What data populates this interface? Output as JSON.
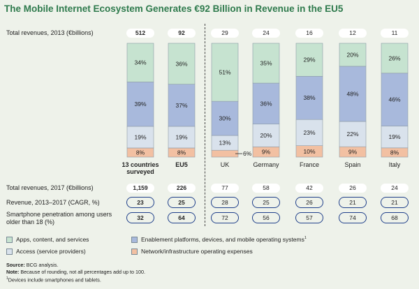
{
  "title": "The Mobile Internet Ecosystem Generates €92 Billion in Revenue in the EU5",
  "row_labels": {
    "revenue_2013": "Total revenues, 2013 (€billions)",
    "revenue_2017": "Total revenues, 2017 (€billions)",
    "cagr": "Revenue, 2013–2017 (CAGR, %)",
    "smartphone": "Smartphone penetration among users older than 18 (%)"
  },
  "colors": {
    "apps": "#c6e3d0",
    "platforms": "#a8b9dc",
    "access": "#d9e2ec",
    "network": "#f2c0a2",
    "accent": "#2e7a4c",
    "oval": "#1f3f8a"
  },
  "chart_data": {
    "type": "bar",
    "stacked": true,
    "percent_scale": true,
    "title": "The Mobile Internet Ecosystem Generates €92 Billion in Revenue in the EU5",
    "categories": [
      "13 countries surveyed",
      "EU5",
      "UK",
      "Germany",
      "France",
      "Spain",
      "Italy"
    ],
    "series": [
      {
        "name": "Network/infrastructure operating expenses",
        "key": "network",
        "values": [
          8,
          8,
          6,
          9,
          10,
          9,
          8
        ],
        "labels": [
          "8%",
          "8%",
          "6%",
          "9%",
          "10%",
          "9%",
          "8%"
        ]
      },
      {
        "name": "Access (service providers)",
        "key": "access",
        "values": [
          19,
          19,
          13,
          20,
          23,
          22,
          19
        ],
        "labels": [
          "19%",
          "19%",
          "13%",
          "20%",
          "23%",
          "22%",
          "19%"
        ]
      },
      {
        "name": "Enablement platforms, devices, and mobile operating systems",
        "key": "platforms",
        "values": [
          39,
          37,
          30,
          36,
          38,
          48,
          46
        ],
        "labels": [
          "39%",
          "37%",
          "30%",
          "36%",
          "38%",
          "48%",
          "46%"
        ]
      },
      {
        "name": "Apps, content, and services",
        "key": "apps",
        "values": [
          34,
          36,
          51,
          35,
          29,
          20,
          26
        ],
        "labels": [
          "34%",
          "36%",
          "51%",
          "35%",
          "29%",
          "20%",
          "26%"
        ]
      }
    ],
    "bold_categories": [
      "13 countries surveyed",
      "EU5"
    ],
    "revenue_2013": [
      "512",
      "92",
      "29",
      "24",
      "16",
      "12",
      "11"
    ],
    "revenue_2017": [
      "1,159",
      "226",
      "77",
      "58",
      "42",
      "26",
      "24"
    ],
    "cagr": [
      "23",
      "25",
      "28",
      "25",
      "26",
      "21",
      "21"
    ],
    "smartphone_penetration": [
      "32",
      "64",
      "72",
      "56",
      "57",
      "74",
      "68"
    ],
    "ylim": [
      0,
      100
    ]
  },
  "legend": [
    {
      "key": "apps",
      "label": "Apps, content, and services"
    },
    {
      "key": "platforms",
      "label": "Enablement platforms, devices, and mobile operating systems",
      "sup": "1"
    },
    {
      "key": "access",
      "label": "Access (service providers)"
    },
    {
      "key": "network",
      "label": "Network/infrastructure operating expenses"
    }
  ],
  "notes": {
    "source_label": "Source:",
    "source_text": "BCG analysis.",
    "note_label": "Note:",
    "note_text": "Because of rounding, not all percentages add up to 100.",
    "footnote_marker": "1",
    "footnote_text": "Devices include smartphones and tablets."
  }
}
